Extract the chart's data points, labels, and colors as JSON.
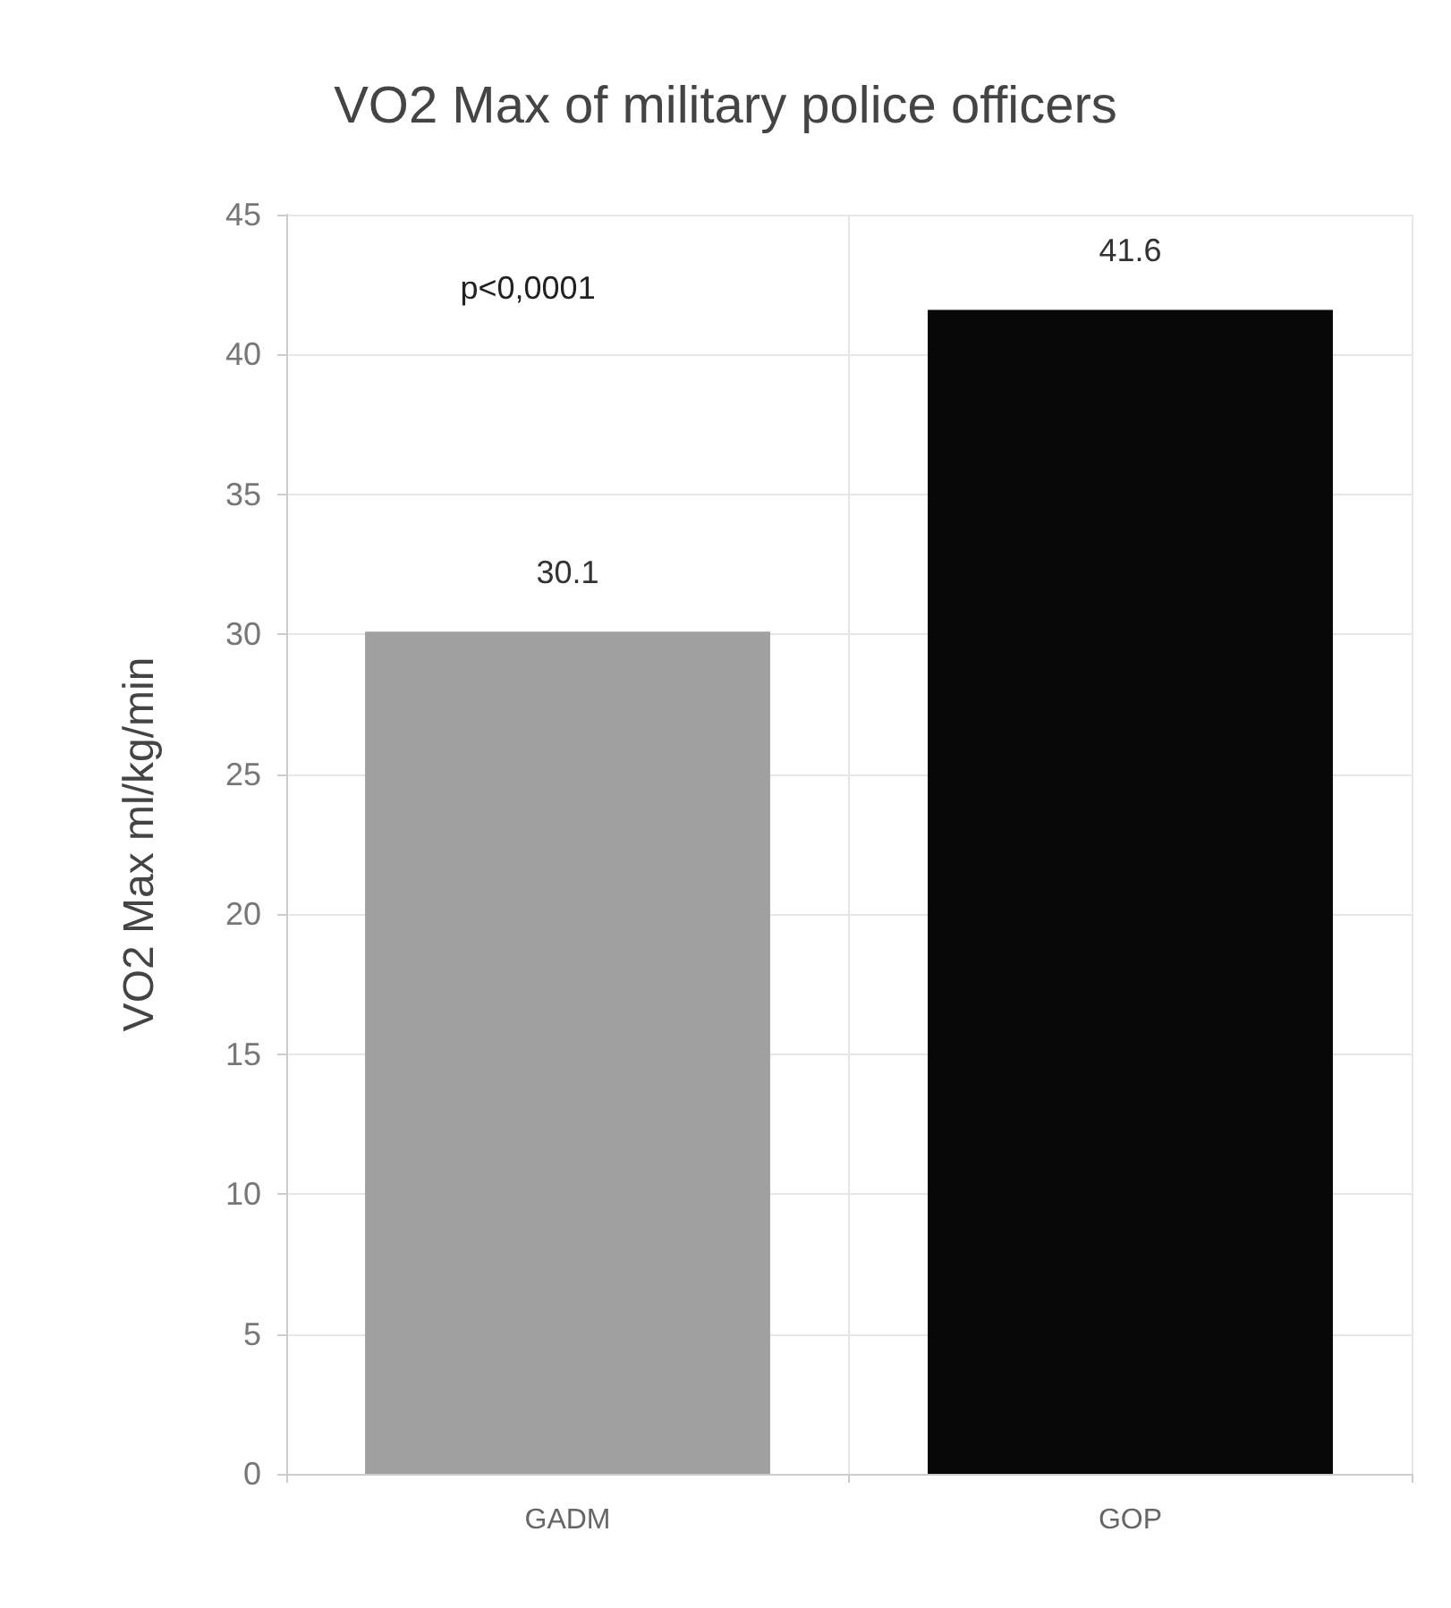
{
  "chart_data": {
    "type": "bar",
    "title": "VO2 Max of military police officers",
    "ylabel": "VO2 Max ml/kg/min",
    "categories": [
      "GADM",
      "GOP"
    ],
    "values": [
      30.1,
      41.6
    ],
    "colors": [
      "#a0a0a0",
      "#080808"
    ],
    "ylim": [
      0,
      45
    ],
    "yticks": [
      0,
      5,
      10,
      15,
      20,
      25,
      30,
      35,
      40,
      45
    ],
    "grid": true,
    "data_labels": true,
    "annotations": [
      "p<0,0001"
    ]
  }
}
